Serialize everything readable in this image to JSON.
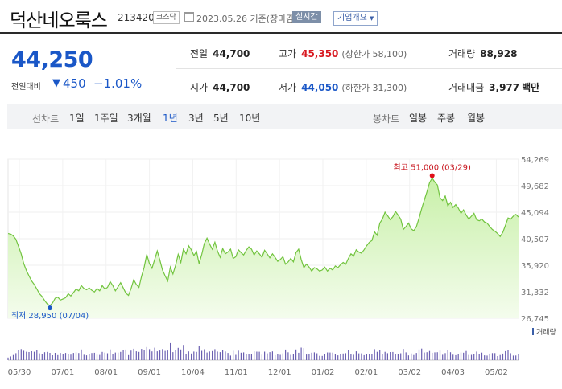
{
  "header": {
    "company": "덕산네오룩스",
    "code": "213420",
    "market": "코스닥",
    "date": "2023.05.26 기준(장마감)",
    "realtime": "실시간",
    "company_info": "기업개요"
  },
  "price": {
    "current": "44,250",
    "change_label": "전일대비",
    "change_value": "450",
    "change_rate": "−1.01%",
    "direction_icon": "down-triangle-icon"
  },
  "stats": {
    "prev_close_label": "전일",
    "prev_close": "44,700",
    "high_label": "고가",
    "high": "45,350",
    "upper_limit": "(상한가 58,100)",
    "volume_label": "거래량",
    "volume": "88,928",
    "open_label": "시가",
    "open": "44,700",
    "low_label": "저가",
    "low": "44,050",
    "lower_limit": "(하한가 31,300)",
    "amount_label": "거래대금",
    "amount": "3,977",
    "amount_unit": "백만"
  },
  "tabs": {
    "line_label": "선차트",
    "line": [
      "1일",
      "1주일",
      "3개월",
      "1년",
      "3년",
      "5년",
      "10년"
    ],
    "active_line": "1년",
    "candle_label": "봉차트",
    "candle": [
      "일봉",
      "주봉",
      "월봉"
    ]
  },
  "chart_data": {
    "type": "area",
    "yticks": [
      "54,269",
      "49,682",
      "45,094",
      "40,507",
      "35,920",
      "31,332",
      "26,745"
    ],
    "ylim": [
      26745,
      54269
    ],
    "xticks": [
      "05/30",
      "07/01",
      "08/01",
      "09/01",
      "10/04",
      "11/01",
      "12/01",
      "01/02",
      "02/01",
      "03/02",
      "04/03",
      "05/02"
    ],
    "high_annotation": "최고 51,000 (03/29)",
    "low_annotation": "최저 28,950 (07/04)",
    "high": 51000,
    "low": 28950,
    "volume_label": "거래량",
    "price_values": [
      41400,
      41300,
      41000,
      40400,
      39200,
      37900,
      36200,
      35000,
      34100,
      33200,
      32600,
      31800,
      31000,
      30500,
      29800,
      29200,
      28950,
      29400,
      30200,
      30400,
      29900,
      30100,
      30300,
      31000,
      30600,
      31200,
      31800,
      31500,
      32400,
      31900,
      31700,
      32000,
      31600,
      31300,
      31900,
      31500,
      32400,
      31800,
      32100,
      33100,
      32400,
      31500,
      32200,
      32900,
      32000,
      31100,
      30700,
      31900,
      33400,
      32600,
      32100,
      34000,
      35600,
      37800,
      36200,
      35400,
      36900,
      38400,
      36800,
      35100,
      34100,
      33200,
      35600,
      34400,
      35900,
      37800,
      36400,
      38700,
      37900,
      39300,
      38600,
      37600,
      38300,
      36200,
      37800,
      39700,
      40600,
      39600,
      38700,
      39900,
      38400,
      37300,
      38800,
      37900,
      38200,
      38700,
      37100,
      37400,
      38600,
      38100,
      37700,
      38500,
      39100,
      38700,
      37700,
      38400,
      37900,
      37300,
      38500,
      37900,
      37200,
      37900,
      37300,
      36600,
      36900,
      37400,
      36100,
      36500,
      37100,
      36500,
      38100,
      38700,
      36900,
      35500,
      36100,
      35600,
      34900,
      35500,
      35300,
      34900,
      35100,
      35600,
      34900,
      35400,
      35100,
      35800,
      35500,
      36000,
      36400,
      36100,
      37100,
      37900,
      37500,
      38600,
      38200,
      38000,
      38600,
      39300,
      39900,
      40200,
      41700,
      41100,
      43200,
      43900,
      45100,
      44500,
      43800,
      44300,
      45200,
      44600,
      43900,
      42100,
      42600,
      43200,
      42200,
      41900,
      42600,
      44100,
      45700,
      47200,
      48600,
      50200,
      51000,
      50300,
      49800,
      47600,
      47100,
      47900,
      46200,
      46800,
      45900,
      46400,
      45800,
      44900,
      45500,
      44600,
      43900,
      44400,
      44900,
      43800,
      43600,
      43900,
      43400,
      43200,
      42600,
      42100,
      41800,
      41400,
      40900,
      41600,
      42800,
      44100,
      43900,
      44400,
      44700,
      44250
    ]
  }
}
